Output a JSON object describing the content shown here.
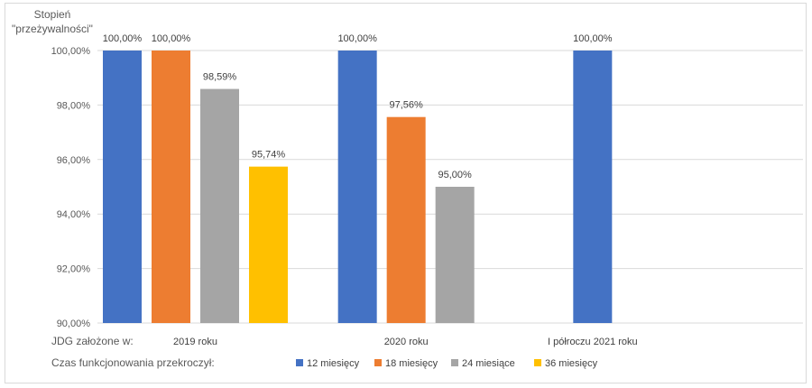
{
  "chart_data": {
    "type": "bar",
    "ylabel_lines": [
      "Stopień",
      "\"przeżywalności\""
    ],
    "xlabel": "JDG założone w:",
    "legend_title": "Czas funkcjonowania przekroczył:",
    "legend_position": "bottom",
    "ylim": [
      90,
      100
    ],
    "yticks": [
      90,
      92,
      94,
      96,
      98,
      100
    ],
    "ytick_labels": [
      "90,00%",
      "92,00%",
      "94,00%",
      "96,00%",
      "98,00%",
      "100,00%"
    ],
    "grid": true,
    "categories": [
      "2019 roku",
      "2020 roku",
      "I półroczu 2021 roku"
    ],
    "series": [
      {
        "name": "12 miesięcy",
        "color": "#4472C4",
        "values": [
          100.0,
          100.0,
          100.0
        ],
        "labels": [
          "100,00%",
          "100,00%",
          "100,00%"
        ]
      },
      {
        "name": "18 miesięcy",
        "color": "#ED7D31",
        "values": [
          100.0,
          97.56,
          null
        ],
        "labels": [
          "100,00%",
          "97,56%",
          null
        ]
      },
      {
        "name": "24 miesiące",
        "color": "#A5A5A5",
        "values": [
          98.59,
          95.0,
          null
        ],
        "labels": [
          "98,59%",
          "95,00%",
          null
        ]
      },
      {
        "name": "36 miesięcy",
        "color": "#FFC000",
        "values": [
          95.74,
          null,
          null
        ],
        "labels": [
          "95,74%",
          null,
          null
        ]
      }
    ]
  }
}
